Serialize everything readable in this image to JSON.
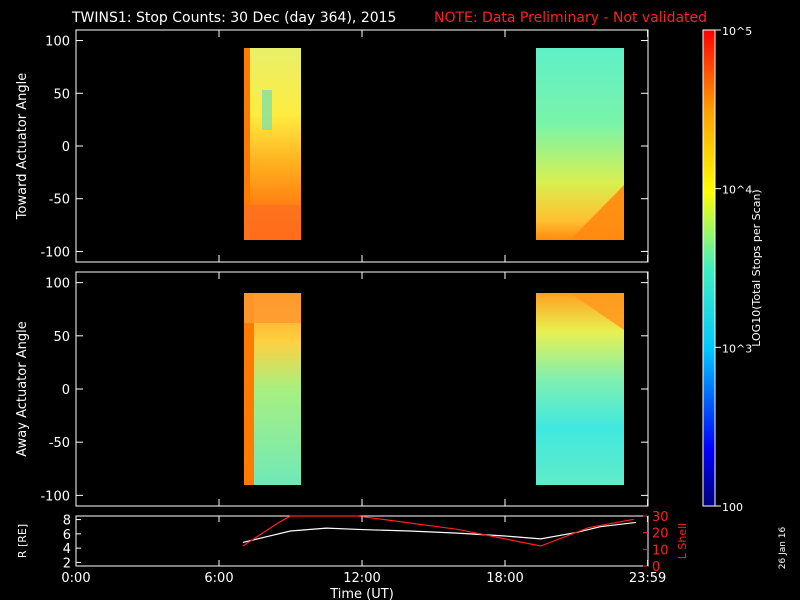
{
  "header": {
    "title": "TWINS1: Stop Counts: 30 Dec (day 364), 2015",
    "note": "NOTE: Data Preliminary - Not validated",
    "date_stamp": "26 Jan 16"
  },
  "colors": {
    "background": "#000000",
    "axis": "#ffffff",
    "note": "#ff2020",
    "lshell": "#ff2020",
    "r_line": "#ffffff"
  },
  "chart_data": [
    {
      "type": "heatmap",
      "panel": "toward",
      "ylabel": "Toward Actuator Angle",
      "xlim": [
        0,
        24
      ],
      "ylim": [
        -110,
        110
      ],
      "yticks": [
        -100,
        -50,
        0,
        50,
        100
      ],
      "grid": false,
      "scan_intervals": [
        {
          "start": "07:10",
          "end": "09:25"
        },
        {
          "start": "19:30",
          "end": "23:20"
        }
      ],
      "angle_range": [
        -88,
        88
      ]
    },
    {
      "type": "heatmap",
      "panel": "away",
      "ylabel": "Away Actuator Angle",
      "xlim": [
        0,
        24
      ],
      "ylim": [
        -110,
        110
      ],
      "yticks": [
        -100,
        -50,
        0,
        50,
        100
      ],
      "grid": false,
      "scan_intervals": [
        {
          "start": "07:10",
          "end": "09:25"
        },
        {
          "start": "19:30",
          "end": "23:20"
        }
      ],
      "angle_range": [
        -88,
        88
      ]
    },
    {
      "type": "line",
      "panel": "orbit",
      "ylabel_left": "R [RE]",
      "ylabel_right": "L Shell",
      "xlabel": "Time (UT)",
      "x_ticks": [
        "0:00",
        "6:00",
        "12:00",
        "18:00",
        "23:59"
      ],
      "ylim_left": [
        1.5,
        8.5
      ],
      "yticks_left": [
        2,
        4,
        6,
        8
      ],
      "ylim_right": [
        0,
        30
      ],
      "yticks_right": [
        0,
        10,
        20,
        30
      ],
      "series": [
        {
          "name": "R [RE]",
          "axis": "left",
          "color": "#ffffff",
          "x": [
            7.0,
            8.0,
            9.0,
            10.5,
            12.0,
            14.0,
            16.0,
            18.0,
            19.5,
            21.0,
            22.0,
            23.5
          ],
          "y": [
            4.8,
            5.6,
            6.4,
            6.8,
            6.6,
            6.4,
            6.1,
            5.7,
            5.3,
            6.2,
            7.0,
            7.6
          ]
        },
        {
          "name": "L Shell",
          "axis": "right",
          "color": "#ff2020",
          "x": [
            7.0,
            8.5,
            9.0,
            11.8,
            16.0,
            19.5,
            21.5,
            23.4
          ],
          "y": [
            12,
            26,
            31,
            31,
            22,
            12,
            23,
            28
          ]
        }
      ]
    }
  ],
  "colorbar": {
    "label": "LOG10(Total Stops per Scan)",
    "tick_labels": [
      "100",
      "10^3",
      "10^4",
      "10^5"
    ],
    "tick_log_values": [
      2,
      3,
      4,
      5
    ],
    "range_log": [
      2,
      5
    ]
  }
}
